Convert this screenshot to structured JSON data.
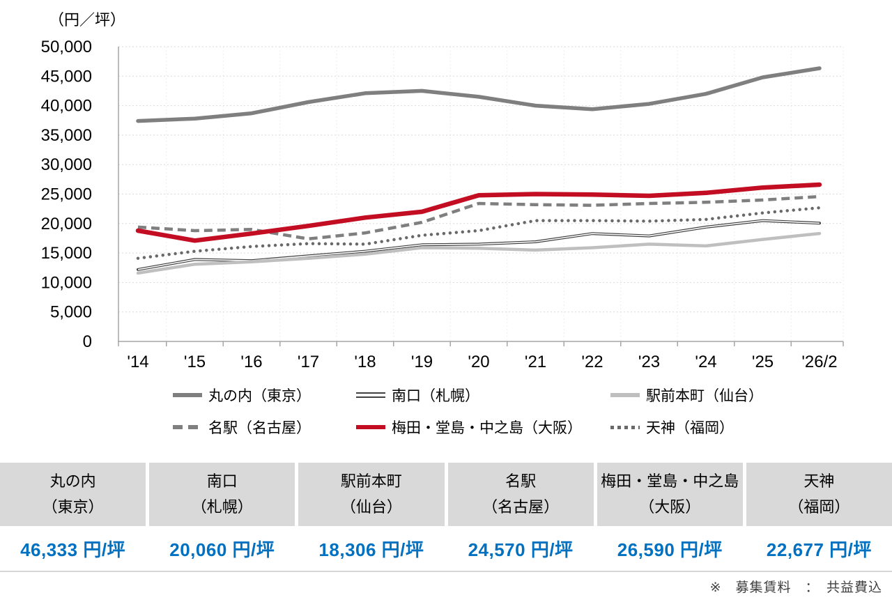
{
  "accent": {
    "value_blue": "#0070c0",
    "header_gray": "#d9d9d9",
    "grid_gray": "#d9d9d9",
    "axis_gray": "#a6a6a6"
  },
  "chart_data": {
    "type": "line",
    "title": "（円／坪）",
    "ylabel": "円/坪",
    "ylim": [
      0,
      50000
    ],
    "y_tick_step": 5000,
    "y_tick_labels": [
      "0",
      "5,000",
      "10,000",
      "15,000",
      "20,000",
      "25,000",
      "30,000",
      "35,000",
      "40,000",
      "45,000",
      "50,000"
    ],
    "grid": "horizontal-dotted",
    "legend_position": "bottom",
    "categories": [
      "'14",
      "'15",
      "'16",
      "'17",
      "'18",
      "'19",
      "'20",
      "'21",
      "'22",
      "'23",
      "'24",
      "'25",
      "'26/2"
    ],
    "series": [
      {
        "key": "marunouchi-tokyo",
        "name": "丸の内（東京）",
        "color": "#7f7f7f",
        "style": "solid-thick",
        "width": 5.5,
        "values": [
          37400,
          37800,
          38700,
          40600,
          42100,
          42500,
          41500,
          40000,
          39400,
          40300,
          42000,
          44800,
          46333
        ]
      },
      {
        "key": "minamiguchi-sapporo",
        "name": "南口（札幌）",
        "color": "#404040",
        "style": "double-thin",
        "width": 4,
        "values": [
          12200,
          13900,
          13700,
          14500,
          15300,
          16400,
          16500,
          16900,
          18300,
          17900,
          19400,
          20500,
          20060
        ]
      },
      {
        "key": "ekimaehoncho-sendai",
        "name": "駅前本町（仙台）",
        "color": "#bfbfbf",
        "style": "solid",
        "width": 4.5,
        "values": [
          11600,
          13100,
          13500,
          14100,
          14800,
          15900,
          15800,
          15500,
          15900,
          16500,
          16200,
          17300,
          18306
        ]
      },
      {
        "key": "meieki-nagoya",
        "name": "名駅（名古屋）",
        "color": "#7f7f7f",
        "style": "dashed",
        "width": 4.5,
        "values": [
          19400,
          18800,
          19000,
          17400,
          18400,
          20200,
          23400,
          23200,
          23100,
          23400,
          23600,
          24000,
          24570
        ]
      },
      {
        "key": "umeda-dojima-nakanoshima-osaka",
        "name": "梅田・堂島・中之島（大阪）",
        "color": "#c30d23",
        "style": "solid-thick",
        "width": 6.5,
        "values": [
          18800,
          17100,
          18300,
          19600,
          21000,
          22000,
          24800,
          25000,
          24900,
          24700,
          25200,
          26100,
          26590
        ]
      },
      {
        "key": "tenjin-fukuoka",
        "name": "天神（福岡）",
        "color": "#696969",
        "style": "dotted",
        "width": 4.5,
        "values": [
          14100,
          15300,
          16100,
          16600,
          16500,
          18000,
          18800,
          20500,
          20500,
          20400,
          20700,
          21800,
          22677
        ]
      }
    ]
  },
  "table": {
    "columns": [
      {
        "key": "tokyo",
        "name": "丸の内",
        "city": "（東京）",
        "value": "46,333 円/坪"
      },
      {
        "key": "sapporo",
        "name": "南口",
        "city": "（札幌）",
        "value": "20,060 円/坪"
      },
      {
        "key": "sendai",
        "name": "駅前本町",
        "city": "（仙台）",
        "value": "18,306 円/坪"
      },
      {
        "key": "nagoya",
        "name": "名駅",
        "city": "（名古屋）",
        "value": "24,570 円/坪"
      },
      {
        "key": "osaka",
        "name": "梅田・堂島・中之島",
        "city": "（大阪）",
        "value": "26,590 円/坪"
      },
      {
        "key": "fukuoka",
        "name": "天神",
        "city": "（福岡）",
        "value": "22,677 円/坪"
      }
    ]
  },
  "footnote": "※　募集賃料　：　共益費込"
}
